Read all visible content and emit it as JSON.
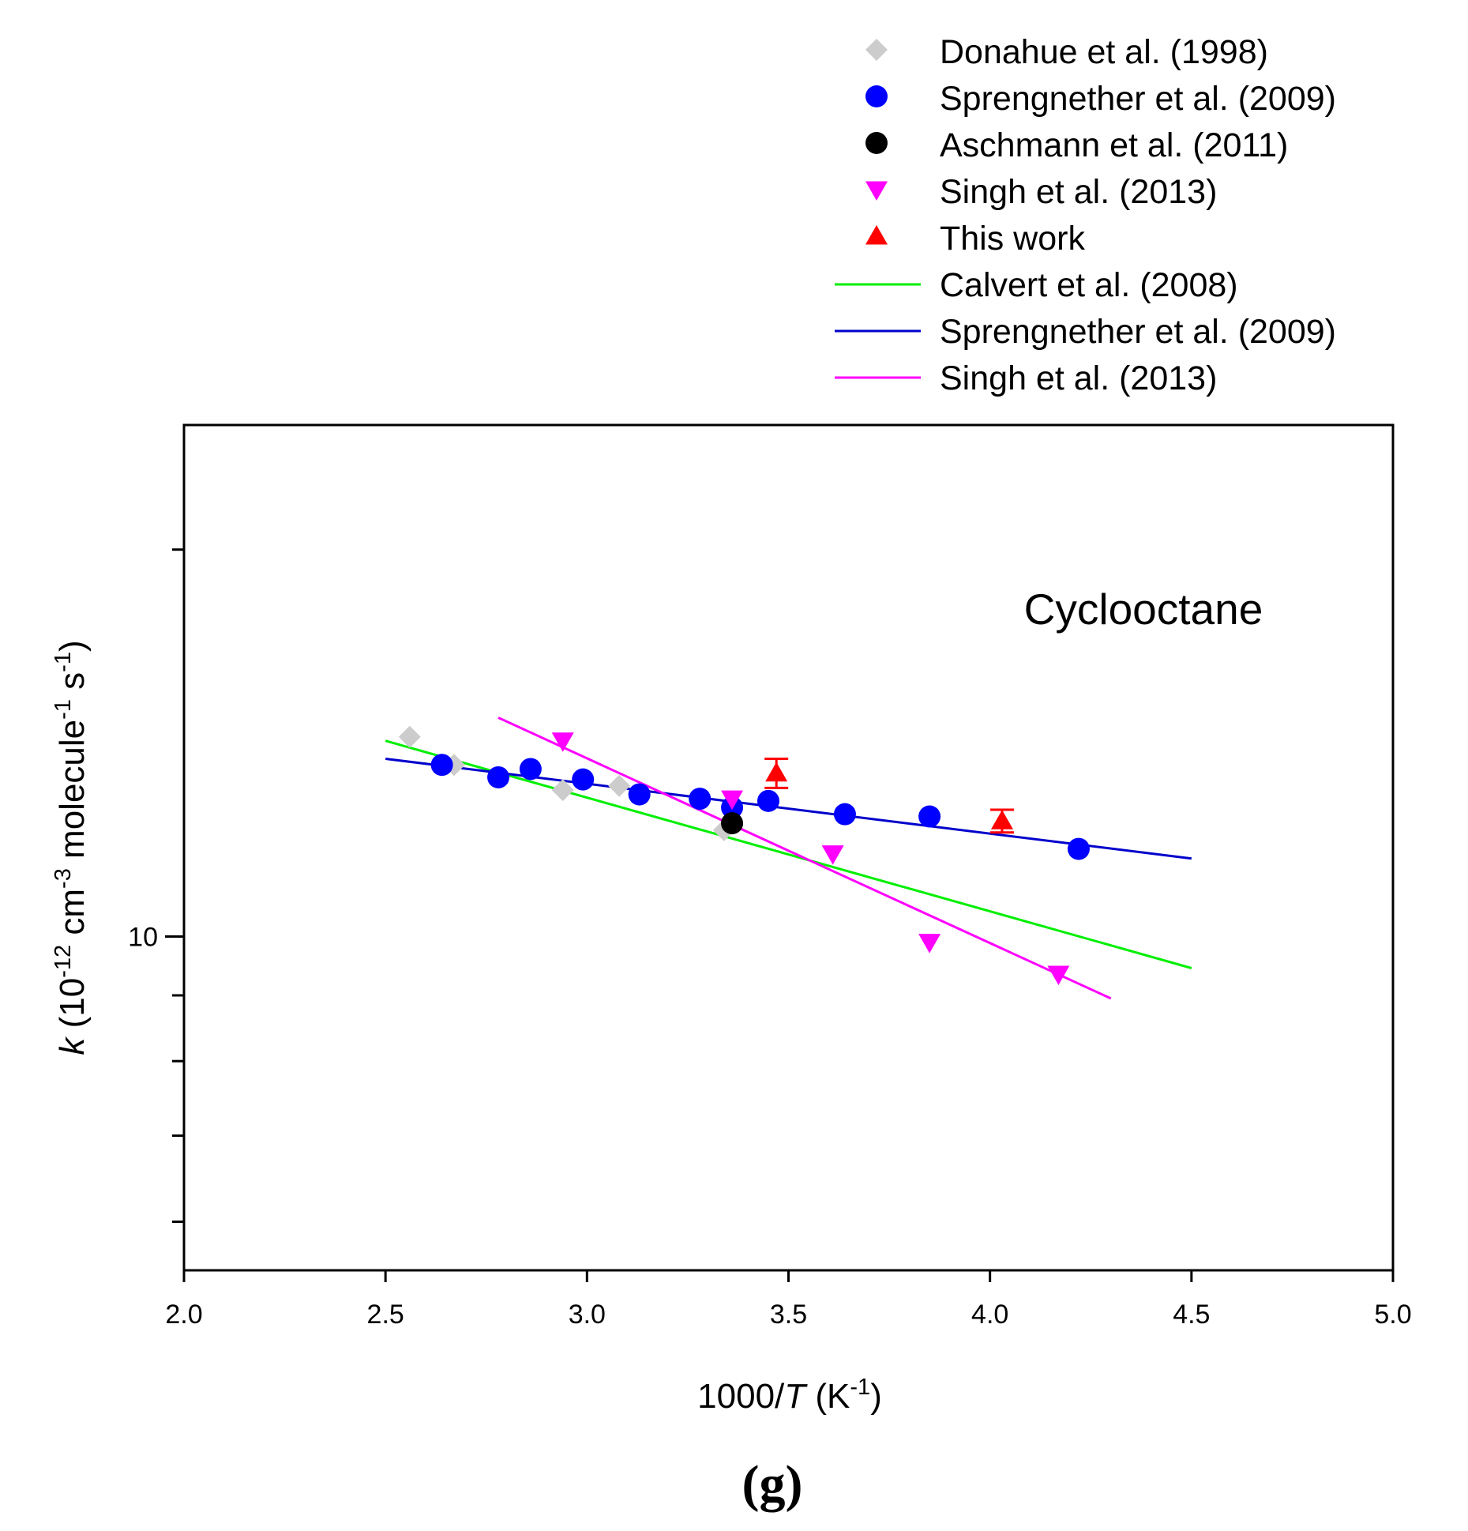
{
  "chart_data": {
    "type": "scatter",
    "title": "",
    "annotation": "Cyclooctane",
    "panel_label": "(g)",
    "xlabel": {
      "prefix": "1000/",
      "italic": "T",
      "unit_open": " (K",
      "unit_sup": "-1",
      "unit_close": ")"
    },
    "ylabel": {
      "italic": "k",
      "p1": " (10",
      "sup1": "-12",
      "p2": " cm",
      "sup2": "-3",
      "p3": " molecule",
      "sup3": "-1",
      "p4": " s",
      "sup4": "-1",
      "p5": ")"
    },
    "xlim": [
      2.0,
      5.0
    ],
    "ylim": [
      5.5,
      25
    ],
    "yscale": "log",
    "x_ticks": [
      "2.0",
      "2.5",
      "3.0",
      "3.5",
      "4.0",
      "4.5",
      "5.0"
    ],
    "y_tick_labels": [
      {
        "value": 10,
        "label": "10"
      }
    ],
    "y_minor_ticks": [
      6,
      7,
      8,
      9,
      20
    ],
    "grid": false,
    "legend_position": "top-right",
    "series": [
      {
        "name": "Donahue et al. (1998)",
        "marker": "diamond",
        "color": "#cccccc",
        "points": [
          [
            2.56,
            14.3
          ],
          [
            2.67,
            13.6
          ],
          [
            2.94,
            13.0
          ],
          [
            3.08,
            13.1
          ],
          [
            3.34,
            12.1
          ]
        ]
      },
      {
        "name": "Sprengnether et al. (2009)",
        "marker": "circle",
        "color": "#0000ff",
        "points": [
          [
            2.64,
            13.6
          ],
          [
            2.78,
            13.3
          ],
          [
            2.86,
            13.5
          ],
          [
            2.99,
            13.25
          ],
          [
            3.13,
            12.9
          ],
          [
            3.28,
            12.8
          ],
          [
            3.36,
            12.6
          ],
          [
            3.45,
            12.75
          ],
          [
            3.64,
            12.45
          ],
          [
            3.85,
            12.4
          ],
          [
            4.22,
            11.7
          ]
        ]
      },
      {
        "name": "Aschmann et al. (2011)",
        "marker": "circle",
        "color": "#000000",
        "points": [
          [
            3.36,
            12.25
          ]
        ]
      },
      {
        "name": "Singh et al. (2013)",
        "marker": "triangle-down",
        "color": "#ff00ff",
        "points": [
          [
            2.94,
            14.2
          ],
          [
            3.36,
            12.8
          ],
          [
            3.61,
            11.6
          ],
          [
            3.85,
            9.9
          ],
          [
            4.17,
            9.35
          ]
        ]
      },
      {
        "name": "This work",
        "marker": "triangle-up",
        "color": "#ff0000",
        "points": [
          [
            3.47,
            13.4
          ],
          [
            4.03,
            12.3
          ]
        ],
        "error_bars": [
          0.35,
          0.25
        ]
      }
    ],
    "fit_lines": [
      {
        "name": "Calvert et al. (2008)",
        "color": "#00ee00",
        "x": [
          2.5,
          4.5
        ],
        "y": [
          14.2,
          9.45
        ]
      },
      {
        "name": "Sprengnether et al. (2009)",
        "color": "#0000cc",
        "x": [
          2.5,
          4.5
        ],
        "y": [
          13.75,
          11.5
        ]
      },
      {
        "name": "Singh et al. (2013)",
        "color": "#ff00ff",
        "x": [
          2.78,
          4.3
        ],
        "y": [
          14.8,
          8.95
        ]
      }
    ]
  }
}
